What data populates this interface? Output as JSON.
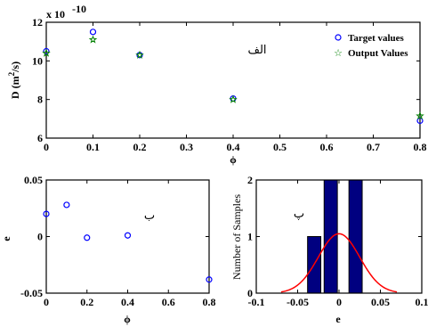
{
  "colors": {
    "target": "#0000ff",
    "output": "#008000",
    "bar": "#000080",
    "fit": "#ff0000",
    "axes": "#000000"
  },
  "chart_data": [
    {
      "type": "scatter",
      "panel_label": "الف",
      "exponent_label": "x 10",
      "exponent_power": "-10",
      "xlabel": "ϕ",
      "ylabel_main": "D (m",
      "ylabel_sup": "2",
      "ylabel_tail": "/s)",
      "xlim": [
        0,
        0.8
      ],
      "ylim": [
        6,
        12
      ],
      "xticks": [
        "0",
        "0.1",
        "0.2",
        "0.3",
        "0.4",
        "0.5",
        "0.6",
        "0.7",
        "0.8"
      ],
      "yticks": [
        "6",
        "8",
        "10",
        "12"
      ],
      "legend_position": "top-right",
      "series": [
        {
          "name": "Target values",
          "marker": "circle",
          "x": [
            0,
            0.1,
            0.2,
            0.4,
            0.8
          ],
          "y": [
            10.5,
            11.5,
            10.3,
            8.05,
            6.9
          ]
        },
        {
          "name": "Output Values",
          "marker": "star",
          "x": [
            0,
            0.1,
            0.2,
            0.4,
            0.8
          ],
          "y": [
            10.4,
            11.1,
            10.3,
            8.0,
            7.15
          ]
        }
      ]
    },
    {
      "type": "scatter",
      "panel_label": "ب",
      "xlabel": "ϕ",
      "ylabel": "e",
      "xlim": [
        0,
        0.8
      ],
      "ylim": [
        -0.05,
        0.05
      ],
      "xticks": [
        "0",
        "0.2",
        "0.4",
        "0.6",
        "0.8"
      ],
      "yticks": [
        "-0.05",
        "0",
        "0.05"
      ],
      "series": [
        {
          "marker": "circle",
          "x": [
            0,
            0.1,
            0.2,
            0.4,
            0.8
          ],
          "y": [
            0.02,
            0.028,
            -0.001,
            0.001,
            -0.038
          ]
        }
      ]
    },
    {
      "type": "bar",
      "panel_label": "پ",
      "xlabel": "e",
      "ylabel": "Number of Samples",
      "xlim": [
        -0.1,
        0.1
      ],
      "ylim": [
        0,
        2
      ],
      "xticks": [
        "-0.1",
        "-0.05",
        "0",
        "0.05",
        "0.1"
      ],
      "yticks": [
        "0",
        "1",
        "2"
      ],
      "bars": [
        {
          "center": -0.03,
          "value": 1
        },
        {
          "center": -0.01,
          "value": 2
        },
        {
          "center": 0.01,
          "value": 0
        },
        {
          "center": 0.02,
          "value": 2
        }
      ],
      "bar_width": 0.016,
      "fit_curve": {
        "mean": 0.0,
        "sd": 0.025,
        "peak": 1.05
      }
    }
  ]
}
